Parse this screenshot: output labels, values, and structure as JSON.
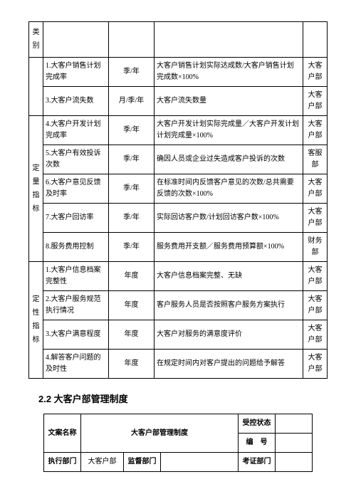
{
  "table1": {
    "col0_header": "类别",
    "group1": {
      "label_chars": [
        "定",
        "量",
        "指",
        "标"
      ]
    },
    "group2": {
      "label_chars": [
        "定",
        "性",
        "指",
        "标"
      ]
    },
    "rows": [
      {
        "name": "1.大客户销售计划完成率",
        "freq": "季/年",
        "formula": "大客户销售计划实际达成数/大客户销售计划完成数×100%",
        "dept": "大客户部"
      },
      {
        "name": "3.大客户流失数",
        "freq": "月/季/年",
        "formula": "大客户流失数量",
        "dept": "大客户部"
      },
      {
        "name": "4.大客户开发计划完成率",
        "freq": "季/年",
        "formula": "大客户开发计划实际完成量／大客户开发计划计划完成量×100%",
        "dept": "大客户部"
      },
      {
        "name": "5.大客户有效投诉次数",
        "freq": "季/年",
        "formula": "确因人员或企业过失造成客户投诉的次数",
        "dept": "客服部"
      },
      {
        "name": "6.大客户意见反馈及时率",
        "freq": "季/年",
        "formula": "在标准时间内反馈客户意见的次数/总共需要反馈的次数×100%",
        "dept": "大客户部"
      },
      {
        "name": "7.大客户回访率",
        "freq": "季/年",
        "formula": "实际回访客户数/计划回访客户数×100%",
        "dept": "大客户部"
      },
      {
        "name": "8.服务费用控制",
        "freq": "季/年",
        "formula": "服务费用开支额／服务费用预算额×100%",
        "dept": "财务部"
      },
      {
        "name": "1.大客户信息档案完整性",
        "freq": "年度",
        "formula": "大客户信息档案完整、无缺",
        "dept": "大客户部"
      },
      {
        "name": "2.大客户服务规范执行情况",
        "freq": "年度",
        "formula": "客户服务人员是否按照客户服务方案执行",
        "dept": "大客户部"
      },
      {
        "name": "3.大客户满意程度",
        "freq": "年度",
        "formula": "大客户对服务的满意度评价",
        "dept": "大客户部"
      },
      {
        "name": "4.解答客户问题的及时性",
        "freq": "年度",
        "formula": "在规定时间内对客户提出的问题给予解答",
        "dept": "大客户部"
      }
    ]
  },
  "section_title": "2.2 大客户部管理制度",
  "table2": {
    "r1c1": "文案名称",
    "r1c2": "大客户部管理制度",
    "r1c3": "受控状态",
    "r2c3": "编　号",
    "r3": {
      "c1": "执行部门",
      "c2": "大客户部",
      "c3": "监督部门",
      "c4": "",
      "c5": "考证部门",
      "c6": ""
    }
  }
}
